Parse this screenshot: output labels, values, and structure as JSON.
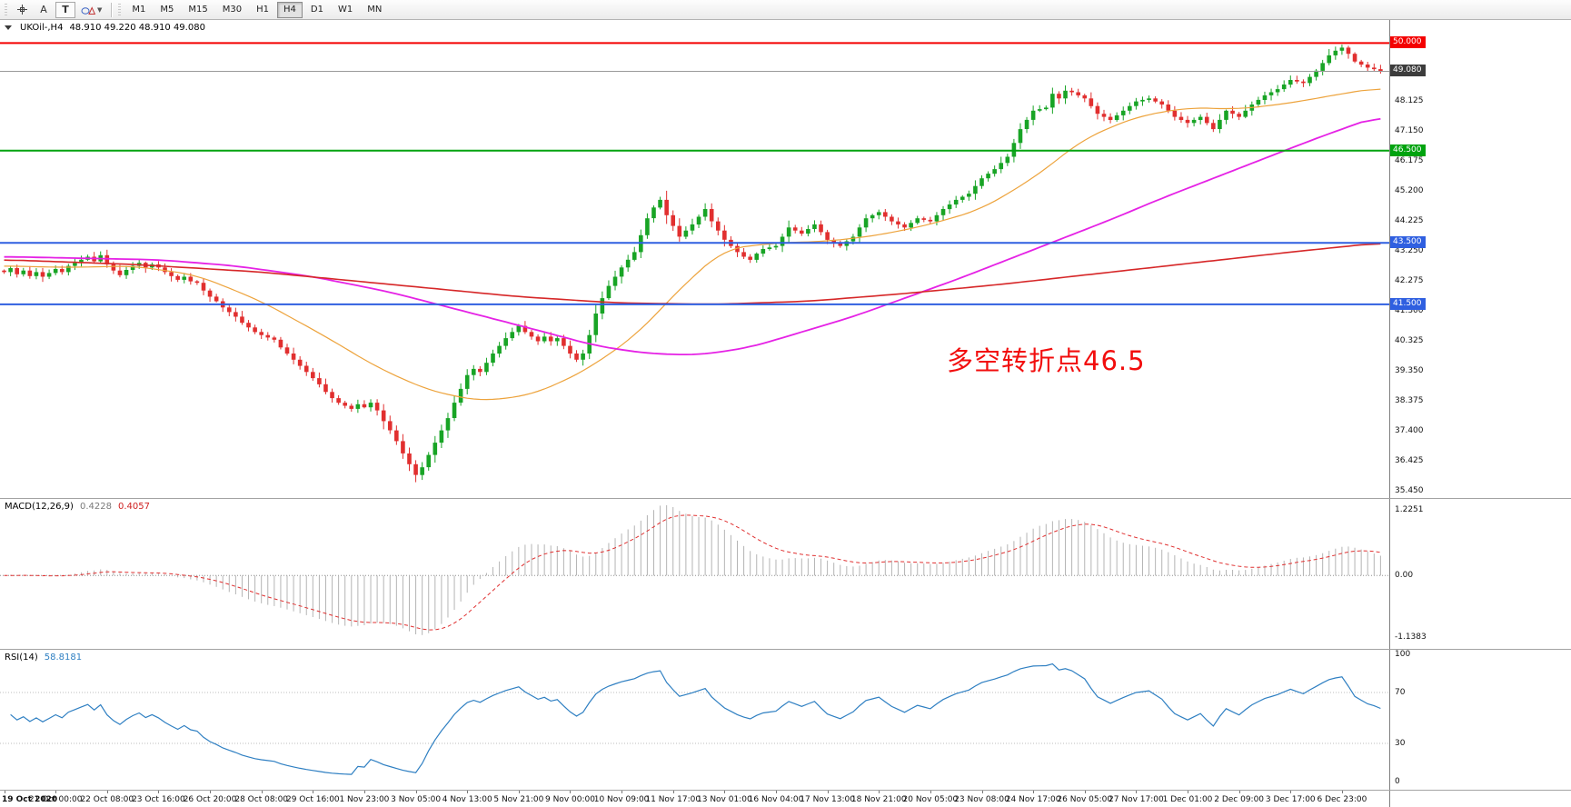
{
  "toolbar": {
    "tools": {
      "crosshair_icon": "crosshair",
      "text_label": "A",
      "text_box": "T",
      "shapes_icon": "shapes"
    },
    "timeframes": [
      "M1",
      "M5",
      "M15",
      "M30",
      "H1",
      "H4",
      "D1",
      "W1",
      "MN"
    ],
    "active_timeframe": "H4"
  },
  "chart_header": {
    "symbol_period": "UKOil-,H4",
    "ohlc": "48.910 49.220 48.910 49.080"
  },
  "annotation": {
    "text": "多空转折点46.5",
    "color": "#f20d0d"
  },
  "macd": {
    "title": "MACD(12,26,9)",
    "value_main": "0.4228",
    "value_signal": "0.4057",
    "scale": [
      {
        "value": 1.2251,
        "label": "1.2251"
      },
      {
        "value": 0,
        "label": "0.00"
      },
      {
        "value": -1.1383,
        "label": "-1.1383"
      }
    ]
  },
  "rsi": {
    "title": "RSI(14)",
    "value": "58.8181",
    "scale": [
      {
        "value": 100,
        "label": "100"
      },
      {
        "value": 70,
        "label": "70"
      },
      {
        "value": 30,
        "label": "30"
      },
      {
        "value": 0,
        "label": "0"
      }
    ]
  },
  "chart_data": {
    "type": "candlestick",
    "symbol": "UKOil-",
    "period": "H4",
    "title": "UKOil-,H4 48.910 49.220 48.910 49.080",
    "price_range": [
      50.75,
      35.2
    ],
    "price_axis_labels": [
      "48.125",
      "47.150",
      "46.175",
      "45.200",
      "44.225",
      "43.250",
      "42.275",
      "41.300",
      "40.325",
      "39.350",
      "38.375",
      "37.400",
      "36.425",
      "35.450"
    ],
    "hlines": [
      {
        "price": 50.0,
        "label": "50.000",
        "color": "#f40000"
      },
      {
        "price": 46.5,
        "label": "46.500",
        "color": "#00a30f"
      },
      {
        "price": 43.5,
        "label": "43.500",
        "color": "#2f5fe0"
      },
      {
        "price": 41.5,
        "label": "41.500",
        "color": "#2f5fe0"
      }
    ],
    "current_price": 49.08,
    "current_price_label": "49.080",
    "colors": {
      "bull": "#18a425",
      "bear": "#e12f2f",
      "price_line": "#9a9a9a",
      "macd_hist": "#b4b4b4",
      "macd_signal": "#e03030",
      "rsi": "#2e7fc2"
    },
    "first_open": 42.6,
    "high_cap": 49.95,
    "closes": [
      42.55,
      42.68,
      42.48,
      42.6,
      42.42,
      42.55,
      42.4,
      42.52,
      42.65,
      42.55,
      42.75,
      42.85,
      42.95,
      43.05,
      42.9,
      43.1,
      42.8,
      42.6,
      42.45,
      42.62,
      42.75,
      42.85,
      42.7,
      42.8,
      42.7,
      42.55,
      42.42,
      42.3,
      42.4,
      42.25,
      42.2,
      41.95,
      41.75,
      41.6,
      41.4,
      41.25,
      41.1,
      40.9,
      40.75,
      40.6,
      40.5,
      40.42,
      40.35,
      40.1,
      39.9,
      39.7,
      39.5,
      39.3,
      39.1,
      38.9,
      38.65,
      38.45,
      38.3,
      38.2,
      38.1,
      38.25,
      38.15,
      38.3,
      38.05,
      37.7,
      37.4,
      37.05,
      36.65,
      36.3,
      35.95,
      36.2,
      36.6,
      37.0,
      37.4,
      37.8,
      38.3,
      38.75,
      39.2,
      39.4,
      39.3,
      39.6,
      39.9,
      40.15,
      40.4,
      40.6,
      40.8,
      40.6,
      40.45,
      40.3,
      40.45,
      40.3,
      40.4,
      40.15,
      39.9,
      39.7,
      39.9,
      40.5,
      41.2,
      41.7,
      42.1,
      42.4,
      42.7,
      42.95,
      43.2,
      43.75,
      44.3,
      44.65,
      44.9,
      44.4,
      44.05,
      43.7,
      43.9,
      44.1,
      44.35,
      44.6,
      44.2,
      43.9,
      43.6,
      43.4,
      43.2,
      43.05,
      42.95,
      43.15,
      43.3,
      43.35,
      43.4,
      43.7,
      44.0,
      43.9,
      43.8,
      43.95,
      44.1,
      43.85,
      43.6,
      43.5,
      43.4,
      43.55,
      43.7,
      44.0,
      44.3,
      44.4,
      44.5,
      44.35,
      44.2,
      44.1,
      44.0,
      44.15,
      44.3,
      44.25,
      44.2,
      44.4,
      44.6,
      44.75,
      44.9,
      45.0,
      45.1,
      45.35,
      45.6,
      45.75,
      45.9,
      46.1,
      46.3,
      46.75,
      47.2,
      47.5,
      47.8,
      47.85,
      47.9,
      48.35,
      48.2,
      48.45,
      48.4,
      48.3,
      48.2,
      47.95,
      47.7,
      47.6,
      47.5,
      47.65,
      47.8,
      47.95,
      48.1,
      48.15,
      48.2,
      48.1,
      48.0,
      47.8,
      47.6,
      47.5,
      47.4,
      47.5,
      47.6,
      47.4,
      47.2,
      47.5,
      47.8,
      47.7,
      47.6,
      47.8,
      48.0,
      48.15,
      48.3,
      48.4,
      48.5,
      48.65,
      48.8,
      48.75,
      48.7,
      48.9,
      49.1,
      49.35,
      49.6,
      49.75,
      49.85,
      49.65,
      49.4,
      49.3,
      49.2,
      49.15,
      49.08
    ],
    "moving_averages": [
      {
        "name": "fast",
        "color": "#eda33c",
        "width": 1.2,
        "waypoints": [
          [
            0,
            42.75
          ],
          [
            10,
            42.7
          ],
          [
            20,
            42.75
          ],
          [
            30,
            42.45
          ],
          [
            40,
            41.6
          ],
          [
            50,
            40.45
          ],
          [
            58,
            39.45
          ],
          [
            66,
            38.7
          ],
          [
            74,
            38.35
          ],
          [
            82,
            38.55
          ],
          [
            90,
            39.3
          ],
          [
            98,
            40.45
          ],
          [
            106,
            42.2
          ],
          [
            112,
            43.3
          ],
          [
            120,
            43.5
          ],
          [
            128,
            43.55
          ],
          [
            136,
            43.75
          ],
          [
            144,
            44.1
          ],
          [
            152,
            44.6
          ],
          [
            160,
            45.6
          ],
          [
            168,
            46.9
          ],
          [
            176,
            47.6
          ],
          [
            184,
            47.9
          ],
          [
            192,
            47.85
          ],
          [
            200,
            48.05
          ],
          [
            208,
            48.35
          ],
          [
            214,
            48.55
          ]
        ]
      },
      {
        "name": "mid",
        "color": "#e522e5",
        "width": 1.8,
        "waypoints": [
          [
            0,
            43.05
          ],
          [
            12,
            43.0
          ],
          [
            24,
            42.95
          ],
          [
            36,
            42.75
          ],
          [
            48,
            42.4
          ],
          [
            60,
            41.9
          ],
          [
            72,
            41.25
          ],
          [
            84,
            40.6
          ],
          [
            92,
            40.15
          ],
          [
            100,
            39.9
          ],
          [
            108,
            39.85
          ],
          [
            116,
            40.1
          ],
          [
            124,
            40.6
          ],
          [
            132,
            41.1
          ],
          [
            140,
            41.7
          ],
          [
            148,
            42.3
          ],
          [
            156,
            42.95
          ],
          [
            164,
            43.6
          ],
          [
            172,
            44.25
          ],
          [
            180,
            44.95
          ],
          [
            188,
            45.6
          ],
          [
            196,
            46.25
          ],
          [
            204,
            46.9
          ],
          [
            210,
            47.35
          ],
          [
            214,
            47.65
          ]
        ]
      },
      {
        "name": "slow",
        "color": "#d62728",
        "width": 1.6,
        "waypoints": [
          [
            0,
            42.95
          ],
          [
            20,
            42.8
          ],
          [
            40,
            42.55
          ],
          [
            60,
            42.15
          ],
          [
            80,
            41.75
          ],
          [
            95,
            41.55
          ],
          [
            110,
            41.5
          ],
          [
            125,
            41.6
          ],
          [
            140,
            41.85
          ],
          [
            155,
            42.15
          ],
          [
            170,
            42.5
          ],
          [
            185,
            42.85
          ],
          [
            200,
            43.2
          ],
          [
            214,
            43.5
          ]
        ]
      }
    ],
    "macd_params": {
      "fast": 12,
      "slow": 26,
      "signal": 9,
      "last_main": 0.4228,
      "last_signal": 0.4057
    },
    "macd_range": [
      1.42,
      -1.36
    ],
    "rsi_params": {
      "period": 14,
      "last": 58.8181
    },
    "rsi_levels": [
      70,
      30
    ],
    "label_step": 8,
    "time_labels": [
      "19 Oct 2020",
      "21 Oct 00:00",
      "22 Oct 08:00",
      "23 Oct 16:00",
      "26 Oct 20:00",
      "28 Oct 08:00",
      "29 Oct 16:00",
      "1 Nov 23:00",
      "3 Nov 05:00",
      "4 Nov 13:00",
      "5 Nov 21:00",
      "9 Nov 00:00",
      "10 Nov 09:00",
      "11 Nov 17:00",
      "13 Nov 01:00",
      "16 Nov 04:00",
      "17 Nov 13:00",
      "18 Nov 21:00",
      "20 Nov 05:00",
      "23 Nov 08:00",
      "24 Nov 17:00",
      "26 Nov 05:00",
      "27 Nov 17:00",
      "1 Dec 01:00",
      "2 Dec 09:00",
      "3 Dec 17:00",
      "6 Dec 23:00"
    ]
  }
}
